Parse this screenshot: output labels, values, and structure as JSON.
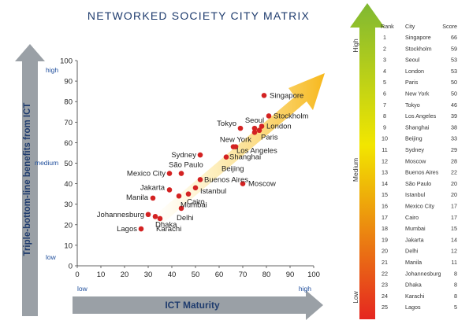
{
  "title": "NETWORKED SOCIETY CITY MATRIX",
  "colors": {
    "title": "#1f3c6e",
    "accent_text": "#1f4e9c",
    "point": "#d32222",
    "axis_arrow": "#9aa0a6",
    "grad_top": "#7fb832",
    "grad_mid": "#f2e600",
    "grad_bottom": "#e52620"
  },
  "chart_data": {
    "type": "scatter",
    "xlabel": "ICT Maturity",
    "ylabel": "Triple-bottom-line benefits from ICT",
    "xlim": [
      0,
      100
    ],
    "ylim": [
      0,
      100
    ],
    "x_ticks": [
      0,
      10,
      20,
      30,
      40,
      50,
      60,
      70,
      80,
      90,
      100
    ],
    "y_ticks": [
      0,
      10,
      20,
      30,
      40,
      50,
      60,
      70,
      80,
      90,
      100
    ],
    "x_level_labels": {
      "low": "low",
      "high": "high"
    },
    "y_level_labels": {
      "high": "high",
      "medium": "medium",
      "low": "low"
    },
    "grid": false,
    "points": [
      {
        "label": "Singapore",
        "x": 79,
        "y": 83
      },
      {
        "label": "Stockholm",
        "x": 81,
        "y": 73
      },
      {
        "label": "Seoul",
        "x": 75,
        "y": 67
      },
      {
        "label": "London",
        "x": 78,
        "y": 68
      },
      {
        "label": "Tokyo",
        "x": 69,
        "y": 67
      },
      {
        "label": "Paris",
        "x": 77,
        "y": 66
      },
      {
        "label": "New York",
        "x": 75,
        "y": 65
      },
      {
        "label": "Los Angeles",
        "x": 66,
        "y": 58
      },
      {
        "label": "Shanghai",
        "x": 67,
        "y": 58
      },
      {
        "label": "Beijing",
        "x": 63,
        "y": 53
      },
      {
        "label": "Sydney",
        "x": 52,
        "y": 54
      },
      {
        "label": "São Paulo",
        "x": 44,
        "y": 45
      },
      {
        "label": "Mexico City",
        "x": 39,
        "y": 45
      },
      {
        "label": "Buenos Aires",
        "x": 52,
        "y": 42
      },
      {
        "label": "Moscow",
        "x": 70,
        "y": 40
      },
      {
        "label": "Istanbul",
        "x": 50,
        "y": 38
      },
      {
        "label": "Jakarta",
        "x": 39,
        "y": 37
      },
      {
        "label": "Cairo",
        "x": 47,
        "y": 35
      },
      {
        "label": "Manila",
        "x": 32,
        "y": 33
      },
      {
        "label": "Mumbai",
        "x": 43,
        "y": 34
      },
      {
        "label": "Delhi",
        "x": 44,
        "y": 28
      },
      {
        "label": "Dhaka",
        "x": 33,
        "y": 24
      },
      {
        "label": "Johannesburg",
        "x": 30,
        "y": 25
      },
      {
        "label": "Karachi",
        "x": 35,
        "y": 23
      },
      {
        "label": "Lagos",
        "x": 27,
        "y": 18
      }
    ]
  },
  "ranking": {
    "headers": {
      "rank": "Rank",
      "city": "City",
      "score": "Score"
    },
    "scale_labels": {
      "high": "High",
      "medium": "Medium",
      "low": "Low"
    },
    "rows": [
      {
        "rank": "1",
        "city": "Singapore",
        "score": "66"
      },
      {
        "rank": "2",
        "city": "Stockholm",
        "score": "59"
      },
      {
        "rank": "3",
        "city": "Seoul",
        "score": "53"
      },
      {
        "rank": "4",
        "city": "London",
        "score": "53"
      },
      {
        "rank": "5",
        "city": "Paris",
        "score": "50"
      },
      {
        "rank": "6",
        "city": "New York",
        "score": "50"
      },
      {
        "rank": "7",
        "city": "Tokyo",
        "score": "46"
      },
      {
        "rank": "8",
        "city": "Los Angeles",
        "score": "39"
      },
      {
        "rank": "9",
        "city": "Shanghai",
        "score": "38"
      },
      {
        "rank": "10",
        "city": "Beijing",
        "score": "33"
      },
      {
        "rank": "11",
        "city": "Sydney",
        "score": "29"
      },
      {
        "rank": "12",
        "city": "Moscow",
        "score": "28"
      },
      {
        "rank": "13",
        "city": "Buenos Aires",
        "score": "22"
      },
      {
        "rank": "14",
        "city": "São Paulo",
        "score": "20"
      },
      {
        "rank": "15",
        "city": "Istanbul",
        "score": "20"
      },
      {
        "rank": "16",
        "city": "Mexico City",
        "score": "17"
      },
      {
        "rank": "17",
        "city": "Cairo",
        "score": "17"
      },
      {
        "rank": "18",
        "city": "Mumbai",
        "score": "15"
      },
      {
        "rank": "19",
        "city": "Jakarta",
        "score": "14"
      },
      {
        "rank": "20",
        "city": "Delhi",
        "score": "12"
      },
      {
        "rank": "21",
        "city": "Manila",
        "score": "11"
      },
      {
        "rank": "22",
        "city": "Johannesburg",
        "score": "8"
      },
      {
        "rank": "23",
        "city": "Dhaka",
        "score": "8"
      },
      {
        "rank": "24",
        "city": "Karachi",
        "score": "8"
      },
      {
        "rank": "25",
        "city": "Lagos",
        "score": "5"
      }
    ]
  }
}
